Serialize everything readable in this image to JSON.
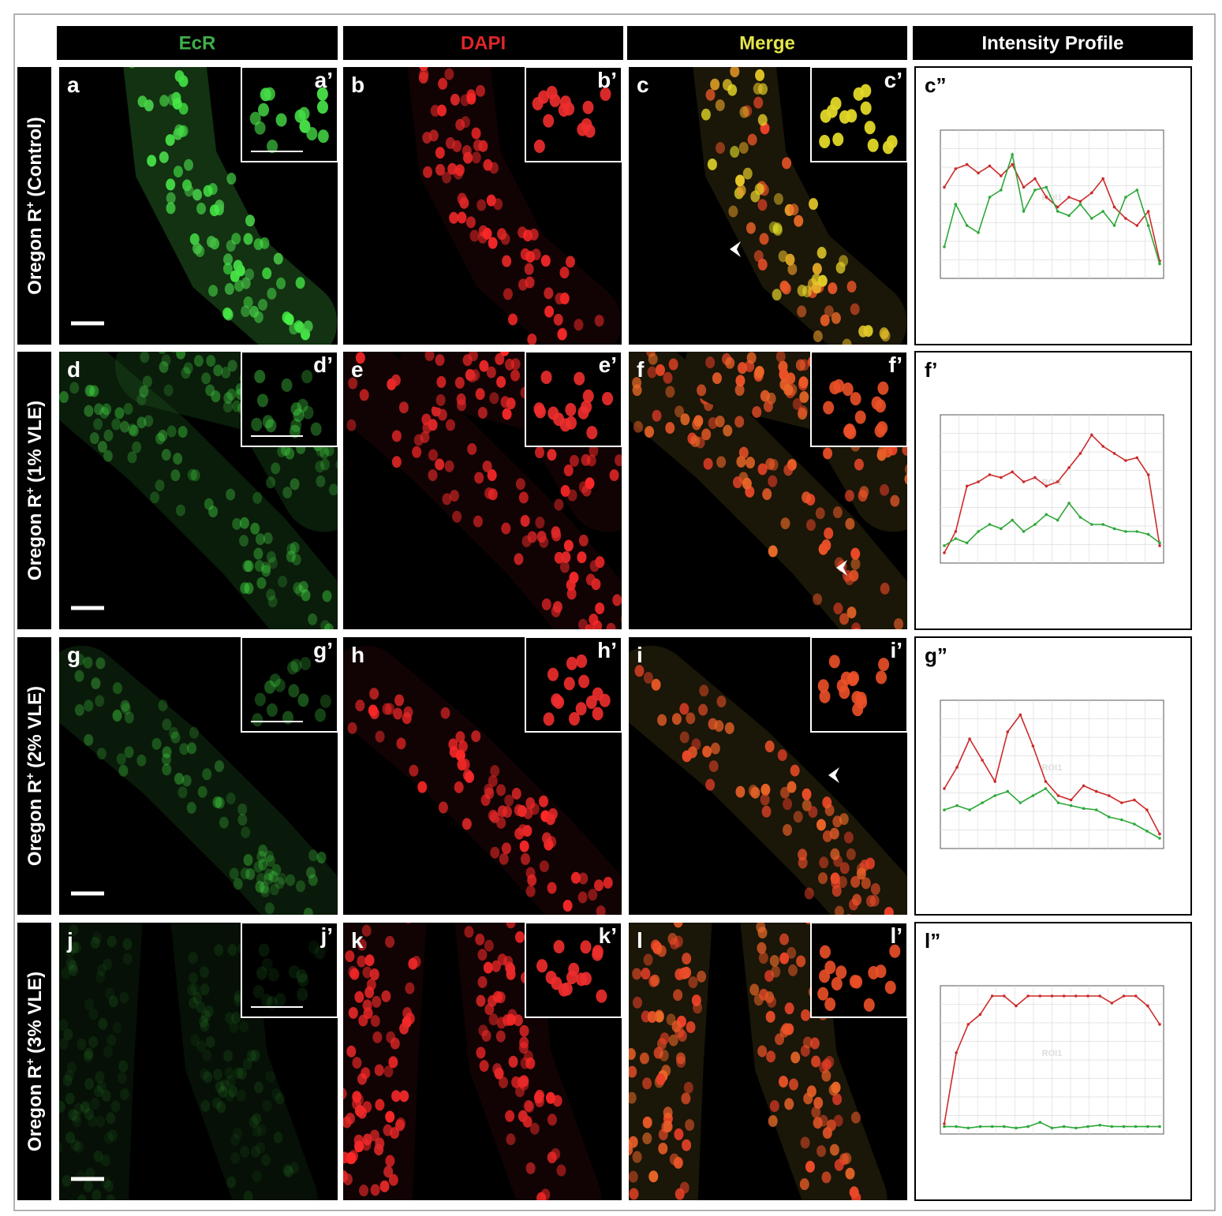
{
  "headers": [
    {
      "text": "EcR",
      "color": "#3fae49"
    },
    {
      "text": "DAPI",
      "color": "#e0262b"
    },
    {
      "text": "Merge",
      "color": "#e6e64a"
    },
    {
      "text": "Intensity Profile",
      "color": "#ffffff"
    }
  ],
  "rows": [
    {
      "label": "Oregon R",
      "sup": "+",
      "condition": "(Control)",
      "panels": [
        "a",
        "b",
        "c"
      ],
      "insets": [
        "a’",
        "b’",
        "c’"
      ],
      "profile_label": "c”"
    },
    {
      "label": "Oregon R",
      "sup": "+",
      "condition": "(1% VLE)",
      "panels": [
        "d",
        "e",
        "f"
      ],
      "insets": [
        "d’",
        "e’",
        "f’"
      ],
      "profile_label": "f’"
    },
    {
      "label": "Oregon R",
      "sup": "+",
      "condition": "(2% VLE)",
      "panels": [
        "g",
        "h",
        "i"
      ],
      "insets": [
        "g’",
        "h’",
        "i’"
      ],
      "profile_label": "g”"
    },
    {
      "label": "Oregon R",
      "sup": "+",
      "condition": "(3% VLE)",
      "panels": [
        "j",
        "k",
        "l"
      ],
      "insets": [
        "j’",
        "k’",
        "l’"
      ],
      "profile_label": "l”"
    }
  ],
  "profiles": [
    {
      "roi": "ROI1",
      "ylim": [
        0,
        100
      ],
      "series": [
        {
          "color": "#cc2a2a",
          "values": [
            62,
            75,
            78,
            72,
            77,
            70,
            78,
            62,
            68,
            55,
            48,
            55,
            52,
            58,
            68,
            48,
            40,
            35,
            45,
            10
          ]
        },
        {
          "color": "#2ea83a",
          "values": [
            20,
            50,
            35,
            30,
            55,
            60,
            85,
            45,
            60,
            62,
            45,
            42,
            50,
            40,
            45,
            35,
            55,
            60,
            35,
            8
          ]
        }
      ]
    },
    {
      "roi": "ROI1",
      "ylim": [
        0,
        100
      ],
      "series": [
        {
          "color": "#cc2a2a",
          "values": [
            5,
            20,
            52,
            55,
            60,
            58,
            62,
            55,
            58,
            52,
            55,
            65,
            75,
            88,
            80,
            75,
            70,
            72,
            60,
            10
          ]
        },
        {
          "color": "#2ea83a",
          "values": [
            10,
            15,
            12,
            20,
            25,
            22,
            28,
            20,
            25,
            32,
            28,
            40,
            30,
            25,
            25,
            22,
            20,
            20,
            18,
            12
          ]
        }
      ]
    },
    {
      "roi": "ROI1",
      "ylim": [
        0,
        100
      ],
      "series": [
        {
          "color": "#cc2a2a",
          "values": [
            40,
            55,
            75,
            60,
            45,
            80,
            92,
            70,
            45,
            35,
            32,
            42,
            38,
            35,
            30,
            32,
            25,
            8
          ]
        },
        {
          "color": "#2ea83a",
          "values": [
            25,
            28,
            25,
            30,
            35,
            38,
            30,
            35,
            40,
            30,
            28,
            26,
            25,
            20,
            18,
            15,
            10,
            5
          ]
        }
      ]
    },
    {
      "roi": "ROI1",
      "ylim": [
        0,
        100
      ],
      "series": [
        {
          "color": "#cc2a2a",
          "values": [
            5,
            55,
            75,
            82,
            95,
            95,
            88,
            95,
            95,
            95,
            95,
            95,
            95,
            95,
            90,
            95,
            95,
            88,
            75
          ]
        },
        {
          "color": "#2ea83a",
          "values": [
            3,
            3,
            2,
            3,
            3,
            3,
            2,
            3,
            6,
            2,
            3,
            2,
            3,
            4,
            3,
            3,
            3,
            3,
            3
          ]
        }
      ]
    }
  ]
}
